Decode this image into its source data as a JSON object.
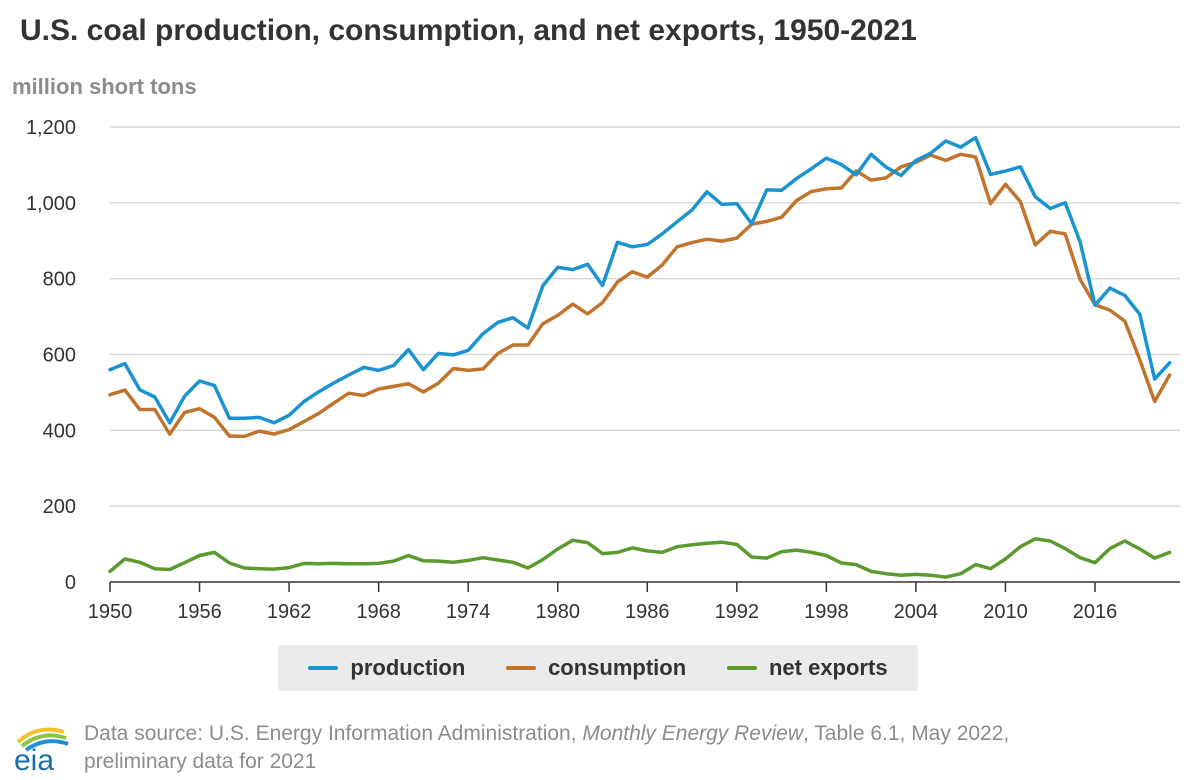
{
  "title": "U.S. coal production, consumption, and net exports, 1950-2021",
  "unit_label": "million short tons",
  "legend": [
    {
      "key": "production",
      "label": "production"
    },
    {
      "key": "consumption",
      "label": "consumption"
    },
    {
      "key": "net_exports",
      "label": "net exports"
    }
  ],
  "source": {
    "prefix": "Data source: U.S. Energy Information Administration, ",
    "publication": "Monthly Energy Review",
    "suffix": ", Table 6.1, May 2022,",
    "line2": "preliminary data for 2021"
  },
  "logo": {
    "text": "eia"
  },
  "colors": {
    "production": "#1a93d0",
    "consumption": "#c0742d",
    "net_exports": "#5a9a2e",
    "grid": "#d9d9d9",
    "axis": "#333333"
  },
  "chart_data": {
    "type": "line",
    "title": "U.S. coal production, consumption, and net exports, 1950-2021",
    "ylabel": "million short tons",
    "xlabel": "",
    "ylim": [
      0,
      1200
    ],
    "yticks": [
      0,
      200,
      400,
      600,
      800,
      1000,
      1200
    ],
    "ytick_labels": [
      "0",
      "200",
      "400",
      "600",
      "800",
      "1,000",
      "1,200"
    ],
    "xticks": [
      1950,
      1956,
      1962,
      1968,
      1974,
      1980,
      1986,
      1992,
      1998,
      2004,
      2010,
      2016
    ],
    "grid": true,
    "legend_position": "bottom",
    "x": [
      1950,
      1951,
      1952,
      1953,
      1954,
      1955,
      1956,
      1957,
      1958,
      1959,
      1960,
      1961,
      1962,
      1963,
      1964,
      1965,
      1966,
      1967,
      1968,
      1969,
      1970,
      1971,
      1972,
      1973,
      1974,
      1975,
      1976,
      1977,
      1978,
      1979,
      1980,
      1981,
      1982,
      1983,
      1984,
      1985,
      1986,
      1987,
      1988,
      1989,
      1990,
      1991,
      1992,
      1993,
      1994,
      1995,
      1996,
      1997,
      1998,
      1999,
      2000,
      2001,
      2002,
      2003,
      2004,
      2005,
      2006,
      2007,
      2008,
      2009,
      2010,
      2011,
      2012,
      2013,
      2014,
      2015,
      2016,
      2017,
      2018,
      2019,
      2020,
      2021
    ],
    "series": [
      {
        "name": "production",
        "key": "production",
        "values": [
          560,
          576,
          507,
          488,
          420,
          490,
          530,
          518,
          432,
          432,
          434,
          420,
          440,
          476,
          502,
          525,
          546,
          566,
          558,
          571,
          613,
          560,
          603,
          599,
          611,
          655,
          685,
          697,
          670,
          781,
          830,
          824,
          838,
          782,
          896,
          884,
          890,
          918,
          950,
          981,
          1029,
          996,
          998,
          945,
          1034,
          1033,
          1064,
          1090,
          1118,
          1101,
          1074,
          1128,
          1094,
          1072,
          1112,
          1131,
          1163,
          1147,
          1172,
          1075,
          1084,
          1095,
          1016,
          985,
          1000,
          897,
          730,
          775,
          756,
          706,
          535,
          578
        ]
      },
      {
        "name": "consumption",
        "key": "consumption",
        "values": [
          494,
          506,
          455,
          455,
          390,
          447,
          457,
          434,
          385,
          384,
          398,
          390,
          402,
          423,
          445,
          472,
          498,
          492,
          509,
          516,
          523,
          501,
          524,
          563,
          558,
          562,
          603,
          625,
          625,
          681,
          703,
          733,
          707,
          737,
          791,
          818,
          804,
          836,
          884,
          895,
          904,
          899,
          907,
          944,
          951,
          962,
          1006,
          1030,
          1037,
          1039,
          1084,
          1060,
          1066,
          1095,
          1107,
          1126,
          1112,
          1128,
          1121,
          998,
          1049,
          1003,
          889,
          925,
          918,
          798,
          731,
          717,
          688,
          586,
          476,
          546
        ]
      },
      {
        "name": "net exports",
        "key": "net_exports",
        "values": [
          28,
          61,
          52,
          35,
          33,
          51,
          70,
          78,
          50,
          37,
          35,
          34,
          38,
          49,
          48,
          49,
          48,
          48,
          49,
          55,
          70,
          56,
          55,
          52,
          57,
          64,
          58,
          52,
          37,
          59,
          87,
          110,
          104,
          75,
          78,
          90,
          82,
          78,
          93,
          98,
          102,
          105,
          99,
          66,
          63,
          80,
          84,
          78,
          70,
          50,
          46,
          28,
          22,
          18,
          20,
          18,
          13,
          22,
          46,
          35,
          61,
          93,
          114,
          108,
          88,
          64,
          51,
          88,
          108,
          87,
          63,
          78
        ]
      }
    ]
  }
}
